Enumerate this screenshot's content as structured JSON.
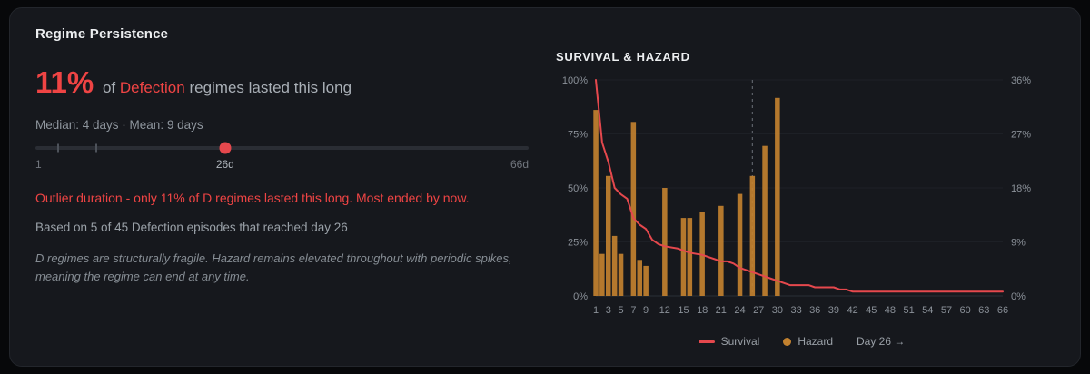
{
  "colors": {
    "accent_red": "#ef4444",
    "survival_line": "#e5484d",
    "hazard_bar": "#c2812f",
    "marker_line": "#6b7178",
    "slider_handle": "#e5484d"
  },
  "panel": {
    "title": "Regime Persistence"
  },
  "headline": {
    "percent": "11%",
    "prefix": "of",
    "regime_name": "Defection",
    "suffix": "regimes lasted this long"
  },
  "stats_line": "Median: 4 days · Mean: 9 days",
  "slider": {
    "min": 1,
    "max": 66,
    "value": 26,
    "marker_days": [
      4,
      9
    ],
    "min_label": "1",
    "value_label": "26d",
    "max_label": "66d"
  },
  "warning_text": "Outlier duration - only 11% of D regimes lasted this long. Most ended by now.",
  "basis_text": "Based on 5 of 45 Defection episodes that reached day 26",
  "note_text": "D regimes are structurally fragile. Hazard remains elevated throughout with periodic spikes, meaning the regime can end at any time.",
  "chart_title": "SURVIVAL & HAZARD",
  "legend": {
    "survival_label": "Survival",
    "hazard_label": "Hazard",
    "marker_label": "Day 26 →"
  },
  "chart_data": {
    "type": "line+bar",
    "title": "SURVIVAL & HAZARD",
    "x_range": [
      1,
      66
    ],
    "x_ticks": [
      1,
      3,
      5,
      7,
      9,
      12,
      15,
      18,
      21,
      24,
      27,
      30,
      33,
      36,
      39,
      42,
      45,
      48,
      51,
      54,
      57,
      60,
      63,
      66
    ],
    "left_axis": {
      "series": "Survival",
      "max": 100,
      "tick_values": [
        100,
        75,
        50,
        25,
        0
      ],
      "tick_labels": [
        "100%",
        "75%",
        "50%",
        "25%",
        "0%"
      ]
    },
    "right_axis": {
      "series": "Hazard",
      "max": 36,
      "tick_values": [
        36,
        27,
        18,
        9,
        0
      ],
      "tick_labels": [
        "36%",
        "27%",
        "18%",
        "9%",
        "0%"
      ]
    },
    "marker_day": 26,
    "survival_pct": [
      [
        1,
        100
      ],
      [
        2,
        71
      ],
      [
        3,
        62
      ],
      [
        4,
        50
      ],
      [
        5,
        47
      ],
      [
        6,
        45
      ],
      [
        7,
        36
      ],
      [
        8,
        33
      ],
      [
        9,
        31
      ],
      [
        10,
        26
      ],
      [
        11,
        24
      ],
      [
        12,
        23
      ],
      [
        14,
        22
      ],
      [
        15,
        21
      ],
      [
        16,
        20
      ],
      [
        18,
        19
      ],
      [
        19,
        18
      ],
      [
        20,
        17
      ],
      [
        21,
        16
      ],
      [
        22,
        16
      ],
      [
        23,
        15
      ],
      [
        24,
        13
      ],
      [
        25,
        12
      ],
      [
        26,
        11
      ],
      [
        27,
        10
      ],
      [
        28,
        9
      ],
      [
        29,
        8
      ],
      [
        30,
        7
      ],
      [
        31,
        6
      ],
      [
        32,
        5
      ],
      [
        35,
        5
      ],
      [
        36,
        4
      ],
      [
        39,
        4
      ],
      [
        40,
        3
      ],
      [
        41,
        3
      ],
      [
        42,
        2
      ],
      [
        66,
        2
      ]
    ],
    "hazard_pct": [
      [
        1,
        31
      ],
      [
        2,
        7
      ],
      [
        3,
        20
      ],
      [
        4,
        10
      ],
      [
        5,
        7
      ],
      [
        7,
        29
      ],
      [
        8,
        6
      ],
      [
        9,
        5
      ],
      [
        12,
        18
      ],
      [
        15,
        13
      ],
      [
        16,
        13
      ],
      [
        18,
        14
      ],
      [
        21,
        15
      ],
      [
        24,
        17
      ],
      [
        26,
        20
      ],
      [
        28,
        25
      ],
      [
        30,
        33
      ]
    ]
  }
}
